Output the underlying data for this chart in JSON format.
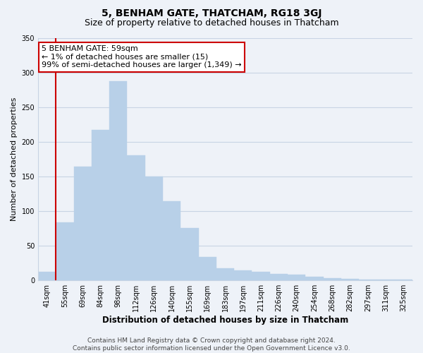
{
  "title": "5, BENHAM GATE, THATCHAM, RG18 3GJ",
  "subtitle": "Size of property relative to detached houses in Thatcham",
  "xlabel": "Distribution of detached houses by size in Thatcham",
  "ylabel": "Number of detached properties",
  "categories": [
    "41sqm",
    "55sqm",
    "69sqm",
    "84sqm",
    "98sqm",
    "112sqm",
    "126sqm",
    "140sqm",
    "155sqm",
    "169sqm",
    "183sqm",
    "197sqm",
    "211sqm",
    "226sqm",
    "240sqm",
    "254sqm",
    "268sqm",
    "282sqm",
    "297sqm",
    "311sqm",
    "325sqm"
  ],
  "values": [
    12,
    84,
    164,
    217,
    288,
    181,
    150,
    114,
    76,
    34,
    18,
    14,
    12,
    9,
    8,
    5,
    3,
    2,
    1,
    1,
    1
  ],
  "bar_color": "#b8d0e8",
  "annotation_box_text": "5 BENHAM GATE: 59sqm\n← 1% of detached houses are smaller (15)\n99% of semi-detached houses are larger (1,349) →",
  "annotation_box_color": "#ffffff",
  "annotation_box_edgecolor": "#cc0000",
  "vline_color": "#cc0000",
  "vline_x": 0.5,
  "ylim": [
    0,
    350
  ],
  "yticks": [
    0,
    50,
    100,
    150,
    200,
    250,
    300,
    350
  ],
  "footer_text": "Contains HM Land Registry data © Crown copyright and database right 2024.\nContains public sector information licensed under the Open Government Licence v3.0.",
  "background_color": "#eef2f8",
  "grid_color": "#c8d4e4",
  "title_fontsize": 10,
  "subtitle_fontsize": 9,
  "xlabel_fontsize": 8.5,
  "ylabel_fontsize": 8,
  "tick_fontsize": 7,
  "footer_fontsize": 6.5,
  "annotation_fontsize": 8
}
